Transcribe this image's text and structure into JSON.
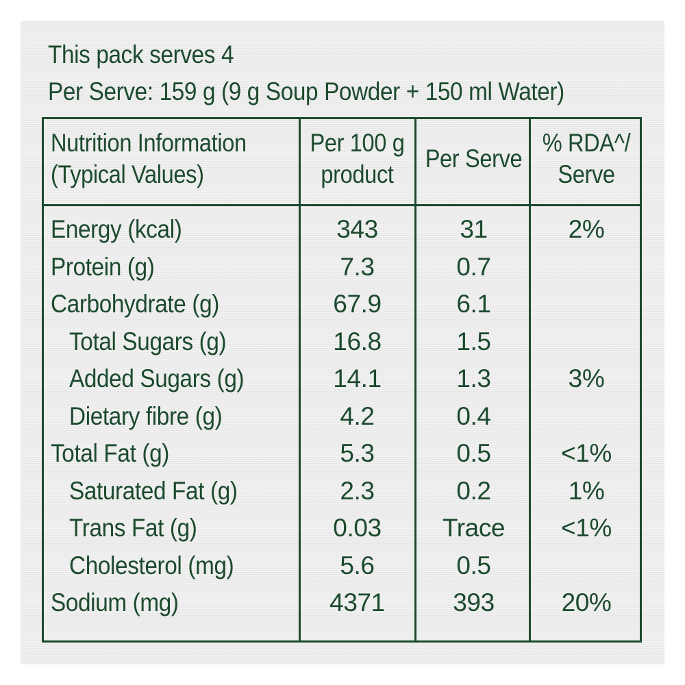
{
  "header": {
    "serves": "This pack serves 4",
    "per_serve": "Per Serve: 159 g (9 g Soup Powder + 150 ml Water)"
  },
  "columns": {
    "c0_line1": "Nutrition Information",
    "c0_line2": "(Typical Values)",
    "c1_line1": "Per 100 g",
    "c1_line2": "product",
    "c2": "Per Serve",
    "c3_line1": "% RDA^/",
    "c3_line2": "Serve"
  },
  "rows": [
    {
      "label": "Energy (kcal)",
      "indent": false,
      "per100": "343",
      "serve": "31",
      "rda": "2%"
    },
    {
      "label": "Protein (g)",
      "indent": false,
      "per100": "7.3",
      "serve": "0.7",
      "rda": ""
    },
    {
      "label": "Carbohydrate (g)",
      "indent": false,
      "per100": "67.9",
      "serve": "6.1",
      "rda": ""
    },
    {
      "label": "Total Sugars (g)",
      "indent": true,
      "per100": "16.8",
      "serve": "1.5",
      "rda": ""
    },
    {
      "label": "Added Sugars (g)",
      "indent": true,
      "per100": "14.1",
      "serve": "1.3",
      "rda": "3%"
    },
    {
      "label": "Dietary fibre (g)",
      "indent": true,
      "per100": "4.2",
      "serve": "0.4",
      "rda": ""
    },
    {
      "label": "Total Fat (g)",
      "indent": false,
      "per100": "5.3",
      "serve": "0.5",
      "rda": "<1%"
    },
    {
      "label": "Saturated Fat (g)",
      "indent": true,
      "per100": "2.3",
      "serve": "0.2",
      "rda": "1%"
    },
    {
      "label": "Trans Fat (g)",
      "indent": true,
      "per100": "0.03",
      "serve": "Trace",
      "rda": "<1%"
    },
    {
      "label": "Cholesterol (mg)",
      "indent": true,
      "per100": "5.6",
      "serve": "0.5",
      "rda": ""
    },
    {
      "label": "Sodium (mg)",
      "indent": false,
      "per100": "4371",
      "serve": "393",
      "rda": "20%"
    }
  ],
  "colors": {
    "ink": "#1c4a2e",
    "panel": "#ececec"
  }
}
